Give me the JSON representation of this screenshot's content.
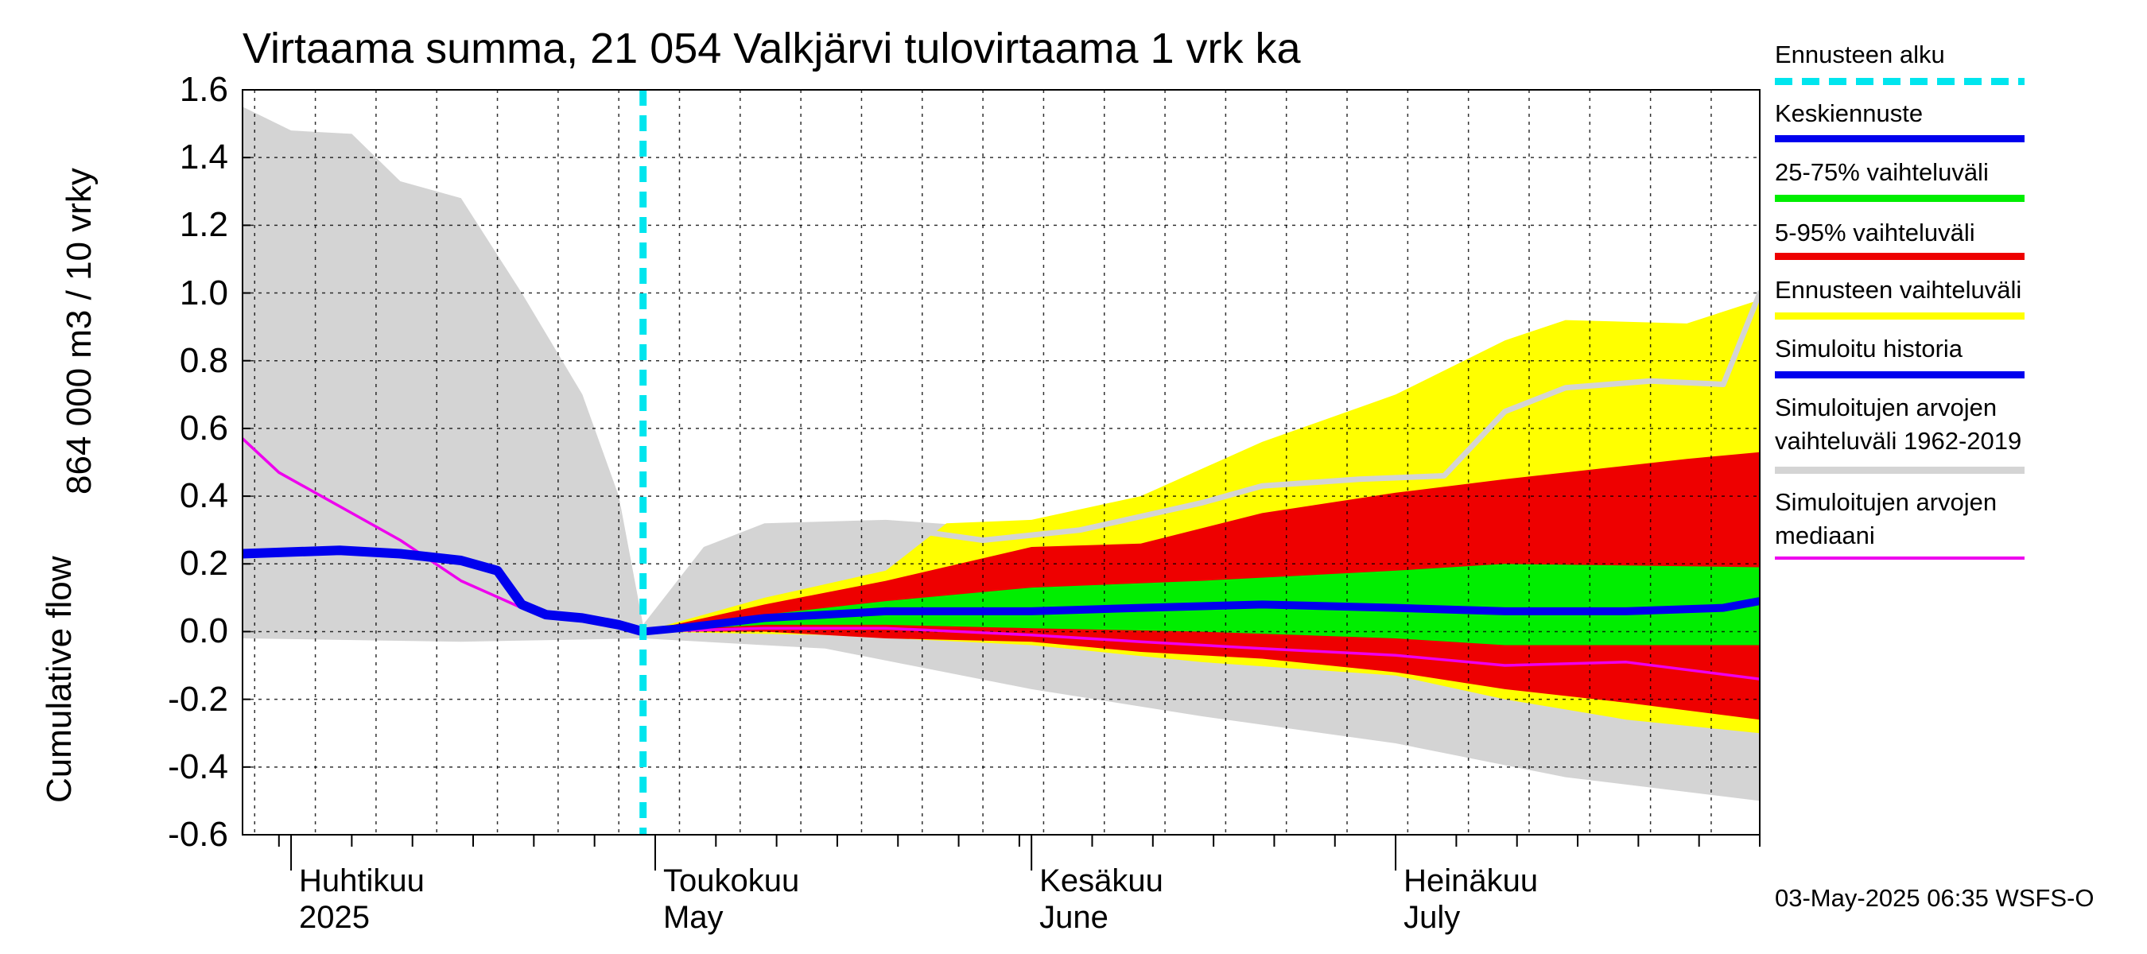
{
  "chart_data": {
    "type": "area",
    "title": "Virtaama summa, 21 054 Valkjärvi tulovirtaama 1 vrk ka",
    "ylabel_line1": "864 000 m3 / 10 vrky",
    "ylabel_line2": "Cumulative flow",
    "ylim": [
      -0.6,
      1.6
    ],
    "yticks": [
      "1.6",
      "1.4",
      "1.2",
      "1.0",
      "0.8",
      "0.6",
      "0.4",
      "0.2",
      "0.0",
      "-0.2",
      "-0.4",
      "-0.6"
    ],
    "x_range": [
      "2025-03-28",
      "2025-07-31"
    ],
    "months": [
      {
        "fi": "Huhtikuu",
        "en": "2025",
        "date": "2025-04-01"
      },
      {
        "fi": "Toukokuu",
        "en": "May",
        "date": "2025-05-01"
      },
      {
        "fi": "Kesäkuu",
        "en": "June",
        "date": "2025-06-01"
      },
      {
        "fi": "Heinäkuu",
        "en": "July",
        "date": "2025-07-01"
      }
    ],
    "forecast_start": "2025-04-30",
    "grid": true,
    "legend_position": "right",
    "series": [
      {
        "name": "Ennusteen alku",
        "color": "#00e5ee",
        "style": "dashed-vertical"
      },
      {
        "name": "Keskiennuste",
        "color": "#0000ee",
        "points": [
          [
            "2025-04-30",
            0.0
          ],
          [
            "2025-05-03",
            0.01
          ],
          [
            "2025-05-10",
            0.04
          ],
          [
            "2025-05-20",
            0.06
          ],
          [
            "2025-06-01",
            0.06
          ],
          [
            "2025-06-10",
            0.07
          ],
          [
            "2025-06-20",
            0.08
          ],
          [
            "2025-07-01",
            0.07
          ],
          [
            "2025-07-10",
            0.06
          ],
          [
            "2025-07-20",
            0.06
          ],
          [
            "2025-07-28",
            0.07
          ],
          [
            "2025-07-31",
            0.09
          ]
        ]
      },
      {
        "name": "25-75% vaihteluväli",
        "color": "#00ee00",
        "upper": [
          [
            "2025-04-30",
            0.0
          ],
          [
            "2025-05-10",
            0.05
          ],
          [
            "2025-05-20",
            0.09
          ],
          [
            "2025-06-01",
            0.13
          ],
          [
            "2025-06-15",
            0.15
          ],
          [
            "2025-07-01",
            0.18
          ],
          [
            "2025-07-10",
            0.2
          ],
          [
            "2025-07-31",
            0.19
          ]
        ],
        "lower": [
          [
            "2025-04-30",
            0.0
          ],
          [
            "2025-05-10",
            0.02
          ],
          [
            "2025-05-20",
            0.02
          ],
          [
            "2025-06-01",
            0.01
          ],
          [
            "2025-06-15",
            0.0
          ],
          [
            "2025-07-01",
            -0.02
          ],
          [
            "2025-07-10",
            -0.04
          ],
          [
            "2025-07-31",
            -0.04
          ]
        ]
      },
      {
        "name": "5-95% vaihteluväli",
        "color": "#ee0000",
        "upper": [
          [
            "2025-04-30",
            0.0
          ],
          [
            "2025-05-10",
            0.08
          ],
          [
            "2025-05-20",
            0.15
          ],
          [
            "2025-06-01",
            0.25
          ],
          [
            "2025-06-10",
            0.26
          ],
          [
            "2025-06-20",
            0.35
          ],
          [
            "2025-07-01",
            0.41
          ],
          [
            "2025-07-10",
            0.45
          ],
          [
            "2025-07-25",
            0.51
          ],
          [
            "2025-07-31",
            0.53
          ]
        ],
        "lower": [
          [
            "2025-04-30",
            0.0
          ],
          [
            "2025-05-10",
            0.0
          ],
          [
            "2025-05-20",
            -0.02
          ],
          [
            "2025-06-01",
            -0.03
          ],
          [
            "2025-06-10",
            -0.06
          ],
          [
            "2025-06-20",
            -0.08
          ],
          [
            "2025-07-01",
            -0.12
          ],
          [
            "2025-07-10",
            -0.17
          ],
          [
            "2025-07-20",
            -0.21
          ],
          [
            "2025-07-31",
            -0.26
          ]
        ]
      },
      {
        "name": "Ennusteen vaihteluväli",
        "color": "#ffff00",
        "upper": [
          [
            "2025-04-30",
            0.0
          ],
          [
            "2025-05-10",
            0.1
          ],
          [
            "2025-05-20",
            0.18
          ],
          [
            "2025-05-25",
            0.32
          ],
          [
            "2025-06-01",
            0.33
          ],
          [
            "2025-06-10",
            0.4
          ],
          [
            "2025-06-20",
            0.56
          ],
          [
            "2025-07-01",
            0.7
          ],
          [
            "2025-07-10",
            0.86
          ],
          [
            "2025-07-15",
            0.92
          ],
          [
            "2025-07-25",
            0.91
          ],
          [
            "2025-07-31",
            0.98
          ]
        ],
        "lower": [
          [
            "2025-04-30",
            0.0
          ],
          [
            "2025-05-15",
            -0.01
          ],
          [
            "2025-06-01",
            -0.04
          ],
          [
            "2025-06-15",
            -0.09
          ],
          [
            "2025-07-01",
            -0.13
          ],
          [
            "2025-07-10",
            -0.2
          ],
          [
            "2025-07-20",
            -0.26
          ],
          [
            "2025-07-31",
            -0.3
          ]
        ]
      },
      {
        "name": "Simuloitu historia",
        "color": "#0000ee",
        "points": [
          [
            "2025-03-28",
            0.23
          ],
          [
            "2025-04-05",
            0.24
          ],
          [
            "2025-04-10",
            0.23
          ],
          [
            "2025-04-15",
            0.21
          ],
          [
            "2025-04-18",
            0.18
          ],
          [
            "2025-04-20",
            0.08
          ],
          [
            "2025-04-22",
            0.05
          ],
          [
            "2025-04-25",
            0.04
          ],
          [
            "2025-04-28",
            0.02
          ],
          [
            "2025-04-30",
            0.0
          ]
        ]
      },
      {
        "name": "Simuloitujen arvojen vaihteluväli 1962-2019",
        "color": "#d4d4d4",
        "upper": [
          [
            "2025-03-28",
            1.55
          ],
          [
            "2025-04-01",
            1.48
          ],
          [
            "2025-04-06",
            1.47
          ],
          [
            "2025-04-10",
            1.33
          ],
          [
            "2025-04-15",
            1.28
          ],
          [
            "2025-04-20",
            1.0
          ],
          [
            "2025-04-25",
            0.7
          ],
          [
            "2025-04-28",
            0.4
          ],
          [
            "2025-04-30",
            0.02
          ],
          [
            "2025-05-05",
            0.25
          ],
          [
            "2025-05-10",
            0.32
          ],
          [
            "2025-05-20",
            0.33
          ],
          [
            "2025-06-01",
            0.3
          ],
          [
            "2025-06-15",
            0.33
          ],
          [
            "2025-07-01",
            0.33
          ],
          [
            "2025-07-31",
            0.33
          ]
        ],
        "lower": [
          [
            "2025-03-28",
            -0.02
          ],
          [
            "2025-04-15",
            -0.03
          ],
          [
            "2025-04-30",
            -0.02
          ],
          [
            "2025-05-15",
            -0.05
          ],
          [
            "2025-06-01",
            -0.17
          ],
          [
            "2025-06-15",
            -0.25
          ],
          [
            "2025-07-01",
            -0.33
          ],
          [
            "2025-07-15",
            -0.43
          ],
          [
            "2025-07-31",
            -0.5
          ]
        ]
      },
      {
        "name": "Simuloitujen arvojen mediaani",
        "color": "#ee00ee",
        "points": [
          [
            "2025-03-28",
            0.57
          ],
          [
            "2025-03-31",
            0.47
          ],
          [
            "2025-04-05",
            0.37
          ],
          [
            "2025-04-10",
            0.27
          ],
          [
            "2025-04-15",
            0.15
          ],
          [
            "2025-04-20",
            0.07
          ],
          [
            "2025-04-25",
            0.04
          ],
          [
            "2025-04-30",
            0.0
          ],
          [
            "2025-05-10",
            0.01
          ],
          [
            "2025-05-20",
            0.01
          ],
          [
            "2025-06-01",
            -0.01
          ],
          [
            "2025-06-10",
            -0.03
          ],
          [
            "2025-06-20",
            -0.05
          ],
          [
            "2025-07-01",
            -0.07
          ],
          [
            "2025-07-10",
            -0.1
          ],
          [
            "2025-07-20",
            -0.09
          ],
          [
            "2025-07-31",
            -0.14
          ]
        ]
      },
      {
        "name": "Simuloitujen arvojen vaihteluväli (max)",
        "color": "#d4d4d4",
        "legend": false,
        "points": [
          [
            "2025-05-22",
            0.3
          ],
          [
            "2025-05-28",
            0.27
          ],
          [
            "2025-06-05",
            0.3
          ],
          [
            "2025-06-15",
            0.38
          ],
          [
            "2025-06-20",
            0.43
          ],
          [
            "2025-06-28",
            0.45
          ],
          [
            "2025-07-05",
            0.46
          ],
          [
            "2025-07-10",
            0.65
          ],
          [
            "2025-07-15",
            0.72
          ],
          [
            "2025-07-22",
            0.74
          ],
          [
            "2025-07-28",
            0.73
          ],
          [
            "2025-07-31",
            1.0
          ]
        ]
      }
    ]
  },
  "legend": {
    "items": [
      {
        "label": "Ennusteen alku",
        "color": "#00e5ee",
        "style": "dashed"
      },
      {
        "label": "Keskiennuste",
        "color": "#0000ee",
        "style": "solid"
      },
      {
        "label": "25-75% vaihteluväli",
        "color": "#00ee00",
        "style": "solid"
      },
      {
        "label": "5-95% vaihteluväli",
        "color": "#ee0000",
        "style": "solid"
      },
      {
        "label": "Ennusteen vaihteluväli",
        "color": "#ffff00",
        "style": "solid"
      },
      {
        "label": "Simuloitu historia",
        "color": "#0000ee",
        "style": "solid"
      },
      {
        "label": "Simuloitujen arvojen\nvaihteluväli 1962-2019",
        "color": "#d4d4d4",
        "style": "solid"
      },
      {
        "label": "Simuloitujen arvojen\nmediaani",
        "color": "#ee00ee",
        "style": "thin"
      }
    ]
  },
  "footer": "03-May-2025 06:35 WSFS-O"
}
